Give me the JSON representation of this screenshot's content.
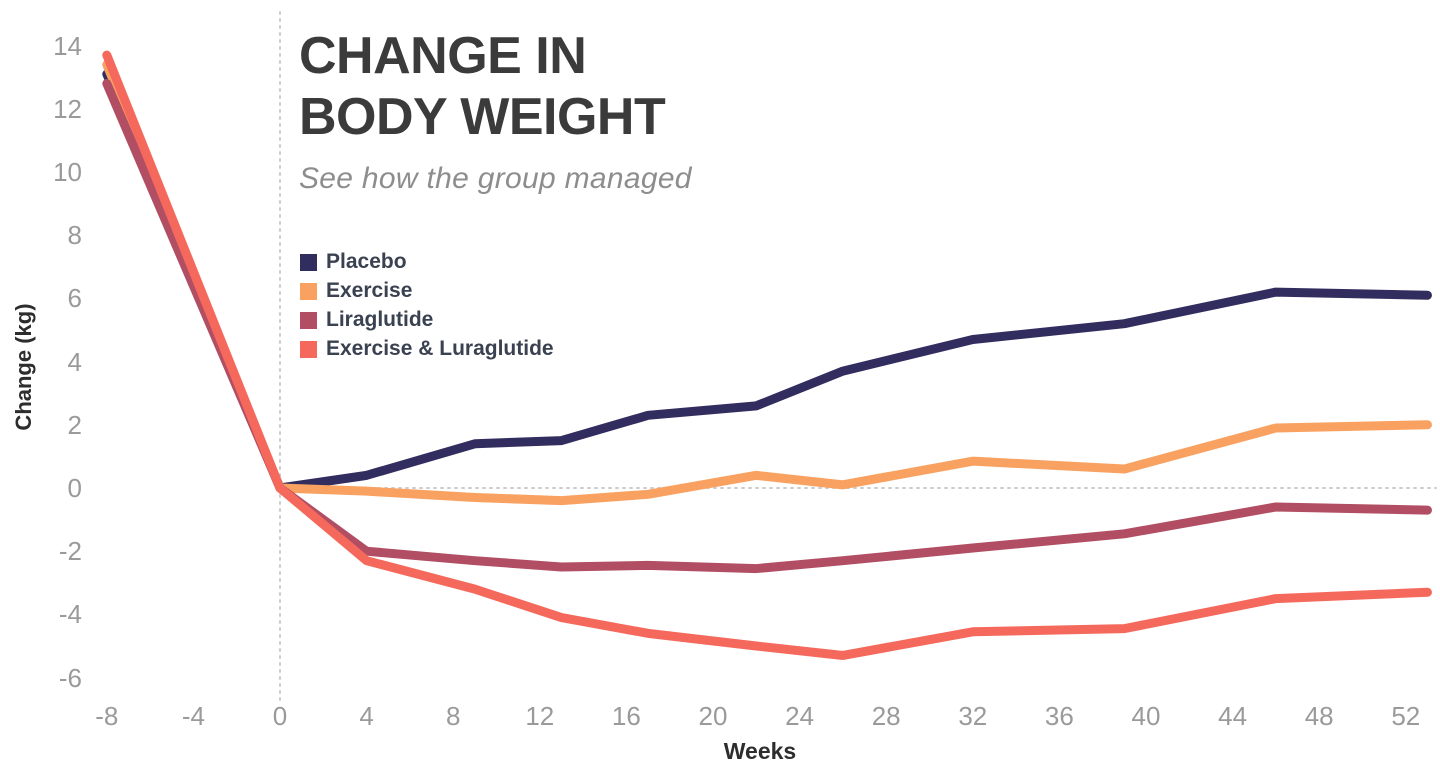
{
  "header": {
    "title_line1": "CHANGE IN",
    "title_line2": "BODY WEIGHT",
    "subtitle": "See how the group managed"
  },
  "chart_data": {
    "type": "line",
    "title": "CHANGE IN BODY WEIGHT",
    "subtitle": "See how the group managed",
    "xlabel": "Weeks",
    "ylabel": "Change (kg)",
    "x_ticks": [
      -8,
      -4,
      0,
      4,
      8,
      12,
      16,
      20,
      24,
      28,
      32,
      36,
      40,
      44,
      48,
      52
    ],
    "y_ticks": [
      14,
      12,
      10,
      8,
      6,
      4,
      2,
      0,
      -2,
      -4,
      -6
    ],
    "xlim": [
      -8.5,
      53.5
    ],
    "ylim": [
      -7,
      14.7
    ],
    "grid": {
      "zero_horizontal_dotted": true,
      "zero_vertical_dotted": true
    },
    "legend_position": "upper-left-inside",
    "x": [
      -8,
      0,
      4,
      9,
      13,
      17,
      22,
      26,
      32,
      39,
      46,
      53
    ],
    "series": [
      {
        "name": "Placebo",
        "color": "#322d5f",
        "values": [
          13.1,
          0,
          0.4,
          1.4,
          1.5,
          2.3,
          2.6,
          3.7,
          4.7,
          5.2,
          6.2,
          6.1
        ]
      },
      {
        "name": "Exercise",
        "color": "#f9a161",
        "values": [
          13.4,
          0,
          -0.1,
          -0.3,
          -0.4,
          -0.2,
          0.4,
          0.1,
          0.85,
          0.6,
          1.9,
          2.0
        ]
      },
      {
        "name": "Liraglutide",
        "color": "#b14e63",
        "values": [
          12.8,
          0,
          -2.0,
          -2.3,
          -2.5,
          -2.45,
          -2.55,
          -2.3,
          -1.9,
          -1.45,
          -0.6,
          -0.7
        ]
      },
      {
        "name": "Exercise & Luraglutide",
        "color": "#f5695c",
        "values": [
          13.7,
          0,
          -2.3,
          -3.2,
          -4.1,
          -4.6,
          -5.0,
          -5.3,
          -4.55,
          -4.45,
          -3.5,
          -3.3
        ]
      }
    ]
  },
  "style_colors": {
    "title": "#3b3b3b",
    "subtitle": "#8d8d8d",
    "tick_labels": "#9a9a9a",
    "axis_titles": "#2d2d2d",
    "grid_dotted": "#cccccc"
  }
}
